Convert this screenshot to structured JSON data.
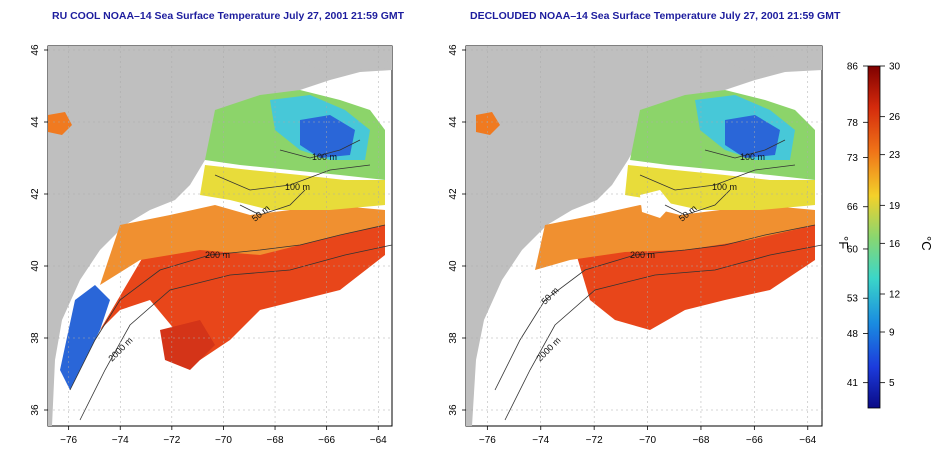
{
  "panels": [
    {
      "title": "RU COOL NOAA–14 Sea Surface Temperature July 27, 2001 21:59 GMT",
      "contour_labels": [
        "100 m",
        "100 m",
        "50 m",
        "200 m",
        "2000 m"
      ]
    },
    {
      "title": "DECLOUDED NOAA–14 Sea Surface Temperature July 27, 2001 21:59 GMT",
      "contour_labels": [
        "100 m",
        "100 m",
        "50 m",
        "200 m",
        "50 m",
        "2000 m"
      ]
    }
  ],
  "x_ticks": [
    "−76",
    "−74",
    "−72",
    "−70",
    "−68",
    "−66",
    "−64"
  ],
  "y_ticks": [
    "46",
    "44",
    "42",
    "40",
    "38",
    "36"
  ],
  "colorbar": {
    "fahrenheit_ticks": [
      "86",
      "78",
      "73",
      "66",
      "60",
      "53",
      "48",
      "41"
    ],
    "celsius_ticks": [
      "30",
      "26",
      "23",
      "19",
      "16",
      "12",
      "9",
      "5"
    ],
    "fahrenheit_label": "°F",
    "celsius_label": "°C",
    "colors": [
      "#7f0000",
      "#d42a0c",
      "#f07418",
      "#f3d12a",
      "#8ad66f",
      "#3bd6c8",
      "#1a8de0",
      "#1c3bdc",
      "#0a0a86"
    ]
  },
  "colors": {
    "land": "#bfbfbf",
    "title": "#1d1d9e",
    "warm": "#e8461a",
    "cool": "#2a66d8"
  }
}
